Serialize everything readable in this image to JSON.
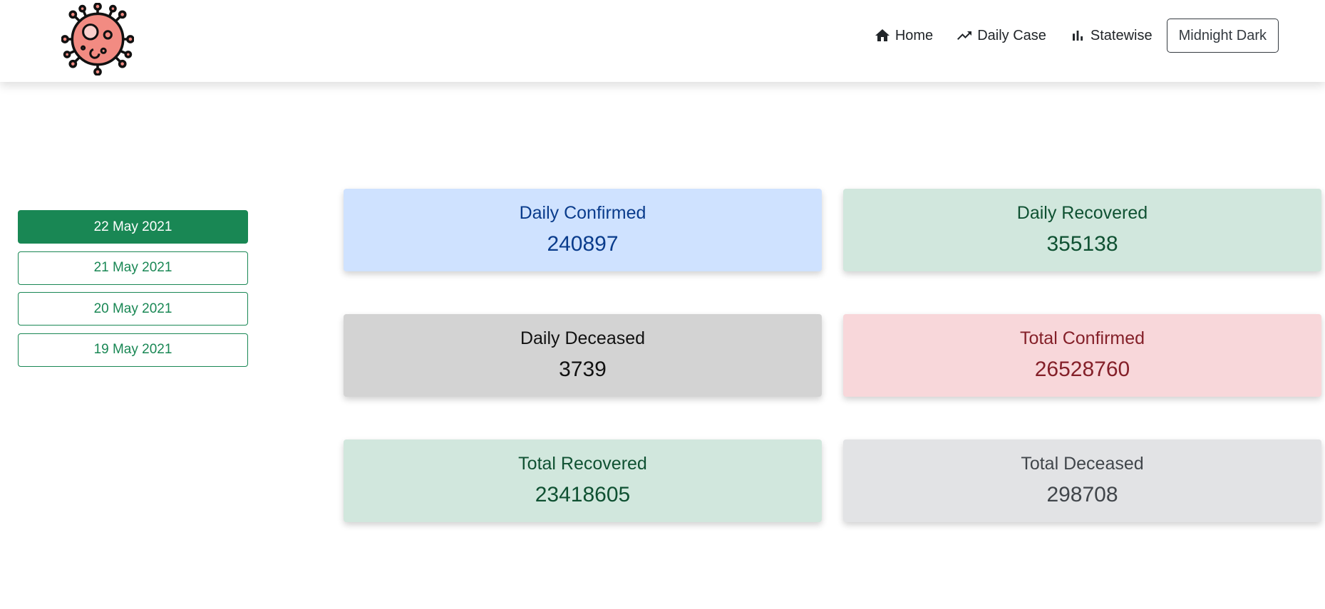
{
  "nav": {
    "logo_icon": "virus-icon",
    "links": [
      {
        "label": "Home",
        "icon": "home-icon"
      },
      {
        "label": "Daily Case",
        "icon": "trending-up-icon"
      },
      {
        "label": "Statewise",
        "icon": "bar-chart-icon"
      }
    ],
    "theme_button": "Midnight Dark"
  },
  "dates": [
    {
      "label": "22 May 2021",
      "active": true
    },
    {
      "label": "21 May 2021",
      "active": false
    },
    {
      "label": "20 May 2021",
      "active": false
    },
    {
      "label": "19 May 2021",
      "active": false
    }
  ],
  "stats": {
    "daily_confirmed": {
      "title": "Daily Confirmed",
      "value": "240897",
      "color": "#cfe2ff"
    },
    "daily_recovered": {
      "title": "Daily Recovered",
      "value": "355138",
      "color": "#d1e7dd"
    },
    "daily_deceased": {
      "title": "Daily Deceased",
      "value": "3739",
      "color": "#d3d3d3"
    },
    "total_confirmed": {
      "title": "Total Confirmed",
      "value": "26528760",
      "color": "#f8d7da"
    },
    "total_recovered": {
      "title": "Total Recovered",
      "value": "23418605",
      "color": "#d1e7dd"
    },
    "total_deceased": {
      "title": "Total Deceased",
      "value": "298708",
      "color": "#e2e3e5"
    }
  },
  "colors": {
    "accent_green": "#198754",
    "navbar_bg": "#ffffff"
  }
}
